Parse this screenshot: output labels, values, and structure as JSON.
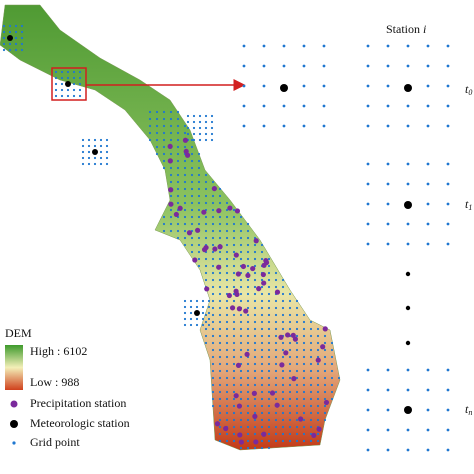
{
  "station_label": {
    "text": "Station",
    "index": "i"
  },
  "time_labels": [
    {
      "symbol": "t",
      "subscript": "0"
    },
    {
      "symbol": "t",
      "subscript": "1"
    },
    {
      "symbol": "t",
      "subscript": "n"
    }
  ],
  "legend": {
    "title": "DEM",
    "high": "High : 6102",
    "low": "Low : 988",
    "items": [
      "Precipitation station",
      "Meteorologic station",
      "Grid point"
    ]
  }
}
